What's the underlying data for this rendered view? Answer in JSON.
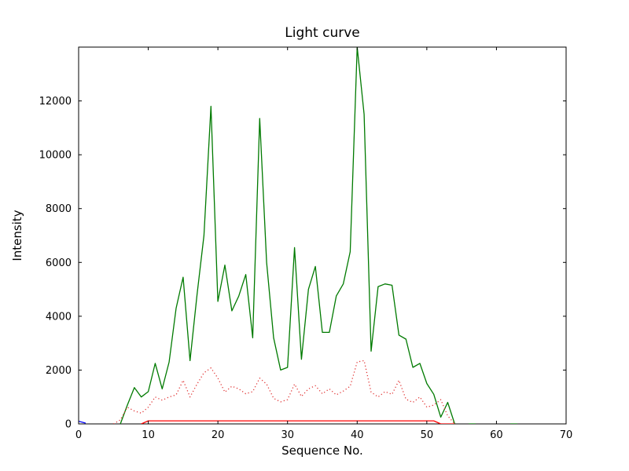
{
  "chart_data": {
    "type": "line",
    "title": "Light curve",
    "xlabel": "Sequence No.",
    "ylabel": "Intensity",
    "xlim": [
      0,
      70
    ],
    "ylim": [
      0,
      14000
    ],
    "xticks": [
      0,
      10,
      20,
      30,
      40,
      50,
      60,
      70
    ],
    "yticks": [
      0,
      2000,
      4000,
      6000,
      8000,
      10000,
      12000
    ],
    "grid": false,
    "legend": "none",
    "axis_color": "#000000",
    "background_color": "#ffffff",
    "series": [
      {
        "name": "green-solid",
        "color": "#007a00",
        "style": "solid",
        "width": 1.3,
        "points": [
          [
            6,
            0
          ],
          [
            7,
            700
          ],
          [
            8,
            1350
          ],
          [
            9,
            1000
          ],
          [
            10,
            1200
          ],
          [
            11,
            2250
          ],
          [
            12,
            1300
          ],
          [
            13,
            2300
          ],
          [
            14,
            4300
          ],
          [
            15,
            5450
          ],
          [
            16,
            2350
          ],
          [
            17,
            4800
          ],
          [
            18,
            7000
          ],
          [
            19,
            11800
          ],
          [
            20,
            4550
          ],
          [
            21,
            5900
          ],
          [
            22,
            4200
          ],
          [
            23,
            4750
          ],
          [
            24,
            5550
          ],
          [
            25,
            3200
          ],
          [
            26,
            11350
          ],
          [
            27,
            6000
          ],
          [
            28,
            3200
          ],
          [
            29,
            2000
          ],
          [
            30,
            2100
          ],
          [
            31,
            6550
          ],
          [
            32,
            2400
          ],
          [
            33,
            5000
          ],
          [
            34,
            5850
          ],
          [
            35,
            3400
          ],
          [
            36,
            3400
          ],
          [
            37,
            4750
          ],
          [
            38,
            5200
          ],
          [
            39,
            6400
          ],
          [
            40,
            14000
          ],
          [
            41,
            11500
          ],
          [
            42,
            2700
          ],
          [
            43,
            5100
          ],
          [
            44,
            5200
          ],
          [
            45,
            5150
          ],
          [
            46,
            3300
          ],
          [
            47,
            3150
          ],
          [
            48,
            2100
          ],
          [
            49,
            2250
          ],
          [
            50,
            1500
          ],
          [
            51,
            1100
          ],
          [
            52,
            250
          ],
          [
            53,
            800
          ],
          [
            54,
            0
          ],
          null,
          [
            56,
            0
          ],
          [
            57,
            0
          ],
          null,
          [
            62,
            0
          ],
          [
            63,
            0
          ]
        ]
      },
      {
        "name": "red-dotted",
        "color": "#e03030",
        "style": "dotted",
        "width": 1.3,
        "points": [
          [
            5,
            0
          ],
          [
            6,
            150
          ],
          [
            7,
            620
          ],
          [
            8,
            480
          ],
          [
            9,
            400
          ],
          [
            10,
            620
          ],
          [
            11,
            1000
          ],
          [
            12,
            880
          ],
          [
            13,
            1000
          ],
          [
            14,
            1080
          ],
          [
            15,
            1620
          ],
          [
            16,
            1000
          ],
          [
            17,
            1480
          ],
          [
            18,
            1900
          ],
          [
            19,
            2080
          ],
          [
            20,
            1700
          ],
          [
            21,
            1180
          ],
          [
            22,
            1400
          ],
          [
            23,
            1300
          ],
          [
            24,
            1120
          ],
          [
            25,
            1200
          ],
          [
            26,
            1700
          ],
          [
            27,
            1480
          ],
          [
            28,
            950
          ],
          [
            29,
            820
          ],
          [
            30,
            900
          ],
          [
            31,
            1480
          ],
          [
            32,
            1020
          ],
          [
            33,
            1300
          ],
          [
            34,
            1420
          ],
          [
            35,
            1120
          ],
          [
            36,
            1300
          ],
          [
            37,
            1080
          ],
          [
            38,
            1220
          ],
          [
            39,
            1400
          ],
          [
            40,
            2300
          ],
          [
            41,
            2350
          ],
          [
            42,
            1180
          ],
          [
            43,
            1000
          ],
          [
            44,
            1200
          ],
          [
            45,
            1100
          ],
          [
            46,
            1620
          ],
          [
            47,
            920
          ],
          [
            48,
            800
          ],
          [
            49,
            1000
          ],
          [
            50,
            620
          ],
          [
            51,
            700
          ],
          [
            52,
            900
          ],
          [
            53,
            300
          ],
          [
            54,
            0
          ]
        ]
      },
      {
        "name": "red-solid",
        "color": "#ff0000",
        "style": "solid",
        "width": 1.3,
        "points": [
          [
            9,
            0
          ],
          [
            10,
            115
          ],
          [
            51,
            115
          ],
          [
            52,
            0
          ],
          [
            54,
            0
          ]
        ]
      },
      {
        "name": "blue-solid",
        "color": "#0000ff",
        "style": "solid",
        "width": 1.3,
        "points": [
          [
            0,
            100
          ],
          [
            1,
            30
          ]
        ]
      }
    ]
  }
}
